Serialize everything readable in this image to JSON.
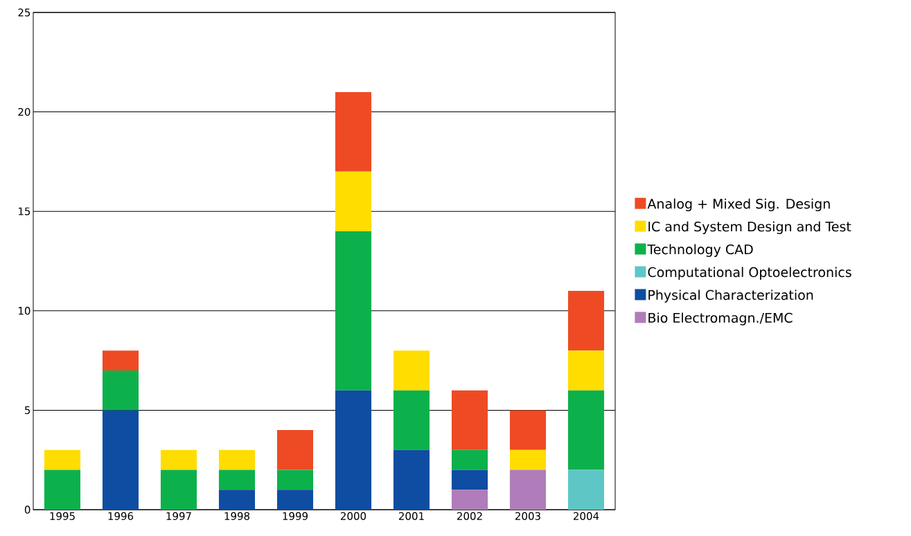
{
  "chart_data": {
    "type": "bar",
    "stacked": true,
    "categories": [
      "1995",
      "1996",
      "1997",
      "1998",
      "1999",
      "2000",
      "2001",
      "2002",
      "2003",
      "2004"
    ],
    "series": [
      {
        "name": "Bio Electromagn./EMC",
        "color": "#b07cb9",
        "values": [
          0,
          0,
          0,
          0,
          0,
          0,
          0,
          1,
          2,
          0
        ]
      },
      {
        "name": "Physical Characterization",
        "color": "#0e4da1",
        "values": [
          0,
          5,
          0,
          1,
          1,
          6,
          3,
          1,
          0,
          0
        ]
      },
      {
        "name": "Computational Optoelectronics",
        "color": "#5fc6c6",
        "values": [
          0,
          0,
          0,
          0,
          0,
          0,
          0,
          0,
          0,
          2
        ]
      },
      {
        "name": "Technology CAD",
        "color": "#0db14b",
        "values": [
          2,
          2,
          2,
          1,
          1,
          8,
          3,
          1,
          0,
          4
        ]
      },
      {
        "name": "IC and System Design and Test",
        "color": "#ffdd00",
        "values": [
          1,
          0,
          1,
          1,
          0,
          3,
          2,
          0,
          1,
          2
        ]
      },
      {
        "name": "Analog + Mixed Sig. Design",
        "color": "#ee4b24",
        "values": [
          0,
          1,
          0,
          0,
          2,
          4,
          0,
          3,
          2,
          3
        ]
      }
    ],
    "ylim": [
      0,
      25
    ],
    "yticks": [
      0,
      5,
      10,
      15,
      20,
      25
    ],
    "grid": "y",
    "legend": "right"
  }
}
